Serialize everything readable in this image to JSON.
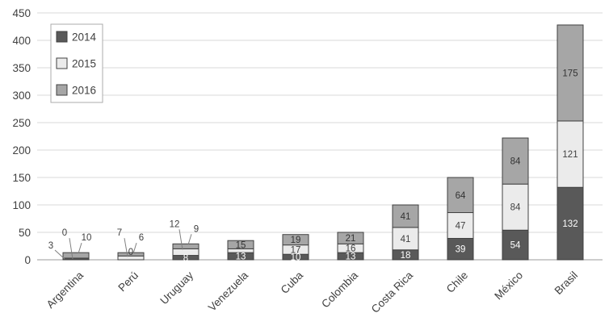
{
  "chart_data": {
    "type": "bar",
    "stacked": true,
    "title": "",
    "xlabel": "",
    "ylabel": "",
    "categories": [
      "Argentina",
      "Perú",
      "Uruguay",
      "Venezuela",
      "Cuba",
      "Colombia",
      "Costa Rica",
      "Chile",
      "México",
      "Brasil"
    ],
    "series": [
      {
        "name": "2014",
        "color": "#595959",
        "label_color": "#ffffff",
        "values": [
          3,
          0,
          8,
          13,
          10,
          13,
          18,
          39,
          54,
          132
        ],
        "labels": [
          "3",
          "0",
          "8",
          "13",
          "10",
          "13",
          "18",
          "39",
          "54",
          "132"
        ],
        "label_modes": [
          "left",
          "base",
          "in",
          "in",
          "in",
          "in",
          "in",
          "in",
          "in",
          "in"
        ]
      },
      {
        "name": "2015",
        "color": "#ebebeb",
        "label_color": "#404040",
        "values": [
          0,
          7,
          12,
          7,
          17,
          16,
          41,
          47,
          84,
          121
        ],
        "labels": [
          "0",
          "7",
          "12",
          "",
          "17",
          "16",
          "41",
          "47",
          "84",
          "121"
        ],
        "label_modes": [
          "above",
          "above",
          "above",
          "none",
          "in",
          "in",
          "in",
          "in",
          "in",
          "in"
        ]
      },
      {
        "name": "2016",
        "color": "#a6a6a6",
        "label_color": "#333333",
        "values": [
          10,
          6,
          9,
          15,
          19,
          21,
          41,
          64,
          84,
          175
        ],
        "labels": [
          "10",
          "6",
          "9",
          "15",
          "19",
          "21",
          "41",
          "64",
          "84",
          "175"
        ],
        "label_modes": [
          "above",
          "above",
          "above",
          "in",
          "in",
          "in",
          "in",
          "in",
          "in",
          "in"
        ]
      }
    ],
    "ylim": [
      0,
      450
    ],
    "yticks": [
      0,
      50,
      100,
      150,
      200,
      250,
      300,
      350,
      400,
      450
    ],
    "grid": true,
    "legend_position": "top-left",
    "legend_labels": [
      "2014",
      "2015",
      "2016"
    ],
    "colors": {
      "grid": "#d9d9d9",
      "baseline": "#9b9b9b",
      "bar_border": "#404040",
      "tick_text": "#404040",
      "leader": "#808080",
      "legend_border": "#ababab",
      "background": "#ffffff"
    }
  }
}
